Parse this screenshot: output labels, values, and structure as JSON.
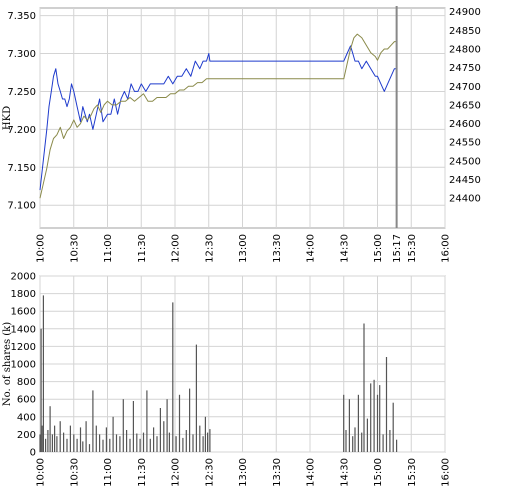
{
  "chart_data": [
    {
      "type": "line",
      "ylabel": "HKD",
      "x_ticks": [
        "10:00",
        "10:30",
        "11:00",
        "11:30",
        "12:00",
        "12:30",
        "13:00",
        "13:30",
        "14:00",
        "14:30",
        "15:00",
        "15:17",
        "15:30",
        "16:00"
      ],
      "ylim": [
        7.07,
        7.36
      ],
      "y_ticks": [
        "7.100",
        "7.150",
        "7.200",
        "7.250",
        "7.300",
        "7.350"
      ],
      "y2lim": [
        24320,
        24910
      ],
      "y2_ticks": [
        "24400",
        "24450",
        "24500",
        "24550",
        "24600",
        "24650",
        "24700",
        "24750",
        "24800",
        "24850",
        "24900"
      ],
      "current_marker_time": "15:17",
      "grid": true,
      "colors": {
        "price": "#1f3bcc",
        "index": "#8a8a4a",
        "marker": "#888888",
        "grid": "#d4d4d4"
      },
      "series": [
        {
          "axis": "left",
          "x": [
            "10:00",
            "10:03",
            "10:06",
            "10:08",
            "10:10",
            "10:12",
            "10:14",
            "10:16",
            "10:18",
            "10:20",
            "10:22",
            "10:24",
            "10:26",
            "10:28",
            "10:30",
            "10:33",
            "10:36",
            "10:38",
            "10:40",
            "10:42",
            "10:44",
            "10:47",
            "10:50",
            "10:53",
            "10:56",
            "11:00",
            "11:03",
            "11:06",
            "11:09",
            "11:12",
            "11:15",
            "11:18",
            "11:21",
            "11:24",
            "11:27",
            "11:30",
            "11:34",
            "11:38",
            "11:42",
            "11:46",
            "11:50",
            "11:54",
            "11:58",
            "12:02",
            "12:06",
            "12:10",
            "12:14",
            "12:18",
            "12:22",
            "12:25",
            "12:28",
            "12:30",
            "12:31",
            "14:30",
            "14:33",
            "14:36",
            "14:38",
            "14:40",
            "14:43",
            "14:46",
            "14:50",
            "14:54",
            "14:58",
            "15:00",
            "15:03",
            "15:06",
            "15:09",
            "15:12",
            "15:15",
            "15:17"
          ],
          "y": [
            7.12,
            7.16,
            7.2,
            7.23,
            7.25,
            7.27,
            7.28,
            7.26,
            7.25,
            7.24,
            7.24,
            7.23,
            7.24,
            7.26,
            7.25,
            7.23,
            7.21,
            7.23,
            7.22,
            7.21,
            7.22,
            7.2,
            7.22,
            7.24,
            7.21,
            7.22,
            7.22,
            7.24,
            7.22,
            7.24,
            7.25,
            7.24,
            7.26,
            7.25,
            7.25,
            7.26,
            7.25,
            7.26,
            7.26,
            7.26,
            7.26,
            7.27,
            7.26,
            7.27,
            7.27,
            7.28,
            7.27,
            7.29,
            7.28,
            7.29,
            7.29,
            7.3,
            7.29,
            7.29,
            7.3,
            7.31,
            7.3,
            7.29,
            7.29,
            7.28,
            7.29,
            7.28,
            7.27,
            7.27,
            7.26,
            7.25,
            7.26,
            7.27,
            7.28,
            7.28
          ]
        },
        {
          "axis": "right",
          "x": [
            "10:00",
            "10:03",
            "10:06",
            "10:09",
            "10:12",
            "10:15",
            "10:18",
            "10:21",
            "10:24",
            "10:27",
            "10:30",
            "10:33",
            "10:36",
            "10:39",
            "10:42",
            "10:45",
            "10:48",
            "10:51",
            "10:54",
            "10:57",
            "11:00",
            "11:04",
            "11:08",
            "11:12",
            "11:16",
            "11:20",
            "11:24",
            "11:28",
            "11:32",
            "11:36",
            "11:40",
            "11:44",
            "11:48",
            "11:52",
            "11:56",
            "12:00",
            "12:04",
            "12:08",
            "12:12",
            "12:16",
            "12:20",
            "12:24",
            "12:28",
            "12:31",
            "14:30",
            "14:33",
            "14:36",
            "14:39",
            "14:42",
            "14:46",
            "14:50",
            "14:54",
            "14:58",
            "15:00",
            "15:03",
            "15:06",
            "15:09",
            "15:12",
            "15:15",
            "15:17"
          ],
          "y": [
            24400,
            24440,
            24480,
            24530,
            24560,
            24570,
            24590,
            24560,
            24580,
            24590,
            24610,
            24590,
            24600,
            24620,
            24610,
            24620,
            24640,
            24650,
            24630,
            24650,
            24660,
            24650,
            24650,
            24660,
            24660,
            24670,
            24660,
            24670,
            24680,
            24660,
            24660,
            24670,
            24670,
            24670,
            24680,
            24680,
            24690,
            24690,
            24700,
            24700,
            24710,
            24710,
            24720,
            24720,
            24720,
            24760,
            24800,
            24830,
            24840,
            24830,
            24810,
            24790,
            24780,
            24770,
            24790,
            24800,
            24800,
            24810,
            24820,
            24820
          ]
        }
      ]
    },
    {
      "type": "bar",
      "ylabel": "No. of shares (k)",
      "ylim": [
        0,
        2000
      ],
      "y_ticks": [
        "0",
        "200",
        "400",
        "600",
        "800",
        "1000",
        "1200",
        "1400",
        "1600",
        "1800",
        "2000"
      ],
      "x_ticks": [
        "10:00",
        "10:30",
        "11:00",
        "11:30",
        "12:00",
        "12:30",
        "13:00",
        "13:30",
        "14:00",
        "14:30",
        "15:00",
        "15:30",
        "16:00"
      ],
      "grid": true,
      "colors": {
        "bar": "#555555",
        "grid": "#d4d4d4"
      },
      "x": [
        "10:00",
        "10:01",
        "10:02",
        "10:03",
        "10:05",
        "10:07",
        "10:09",
        "10:11",
        "10:13",
        "10:15",
        "10:18",
        "10:21",
        "10:24",
        "10:27",
        "10:30",
        "10:33",
        "10:36",
        "10:38",
        "10:41",
        "10:44",
        "10:47",
        "10:50",
        "10:53",
        "10:56",
        "10:59",
        "11:02",
        "11:05",
        "11:08",
        "11:11",
        "11:14",
        "11:17",
        "11:20",
        "11:23",
        "11:26",
        "11:29",
        "11:32",
        "11:35",
        "11:38",
        "11:41",
        "11:44",
        "11:47",
        "11:50",
        "11:53",
        "11:55",
        "11:58",
        "12:01",
        "12:04",
        "12:07",
        "12:10",
        "12:13",
        "12:16",
        "12:19",
        "12:22",
        "12:25",
        "12:27",
        "12:29",
        "12:31",
        "14:30",
        "14:32",
        "14:35",
        "14:38",
        "14:40",
        "14:43",
        "14:46",
        "14:48",
        "14:51",
        "14:54",
        "14:57",
        "15:00",
        "15:02",
        "15:05",
        "15:08",
        "15:11",
        "15:14",
        "15:17"
      ],
      "values": [
        200,
        1400,
        300,
        1780,
        150,
        250,
        520,
        200,
        300,
        180,
        350,
        220,
        150,
        300,
        200,
        150,
        280,
        120,
        350,
        90,
        700,
        300,
        200,
        140,
        280,
        150,
        400,
        200,
        180,
        600,
        250,
        150,
        580,
        210,
        150,
        220,
        700,
        150,
        280,
        180,
        500,
        350,
        600,
        220,
        1700,
        180,
        650,
        160,
        250,
        720,
        200,
        1220,
        300,
        180,
        400,
        220,
        260,
        650,
        250,
        600,
        180,
        280,
        650,
        220,
        1460,
        380,
        780,
        820,
        650,
        760,
        200,
        1080,
        250,
        560,
        140
      ]
    }
  ]
}
